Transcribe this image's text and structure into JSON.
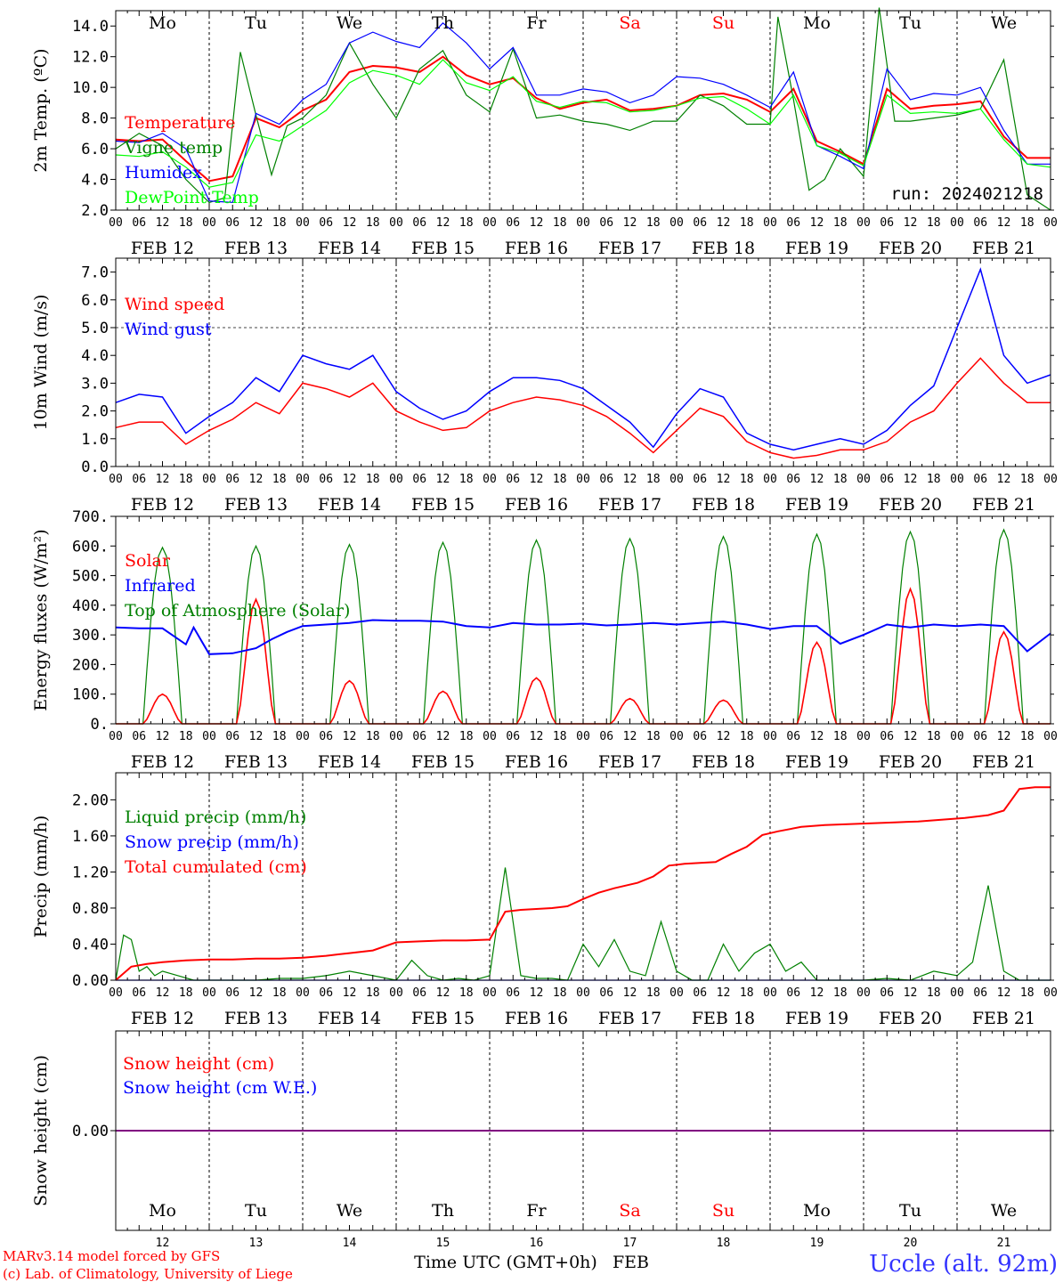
{
  "days": {
    "names": [
      "Mo",
      "Tu",
      "We",
      "Th",
      "Fr",
      "Sa",
      "Su",
      "Mo",
      "Tu",
      "We"
    ],
    "weekend": [
      false,
      false,
      false,
      false,
      false,
      true,
      true,
      false,
      false,
      false
    ],
    "dates": [
      "FEB 12",
      "FEB 13",
      "FEB 14",
      "FEB 15",
      "FEB 16",
      "FEB 17",
      "FEB 18",
      "FEB 19",
      "FEB 20",
      "FEB 21"
    ],
    "numbers": [
      "12",
      "13",
      "14",
      "15",
      "16",
      "17",
      "18",
      "19",
      "20",
      "21"
    ],
    "hour_ticks": [
      "00",
      "06",
      "12",
      "18"
    ],
    "end_tick": "00"
  },
  "colors": {
    "red": "#ff0000",
    "dark_green": "#008000",
    "blue": "#0000ff",
    "light_green": "#00ff00",
    "purple": "#800080",
    "axis": "#000000"
  },
  "footer": {
    "credit1": "MARv3.14 model forced by GFS",
    "credit2": "(c) Lab. of Climatology, University of Liege",
    "xlabel": "Time UTC (GMT+0h)",
    "month": "FEB",
    "station": "Uccle (alt. 92m)"
  },
  "chart_data": [
    {
      "type": "line",
      "ylabel": "2m Temp. (ºC)",
      "ylim": [
        2,
        15
      ],
      "yticks": [
        "2.0",
        "4.0",
        "6.0",
        "8.0",
        "10.0",
        "12.0",
        "14.0"
      ],
      "annotation": "run: 2024021218",
      "x_unit": "hours since FEB 12 00 UTC",
      "series": [
        {
          "name": "Temperature",
          "color": "#ff0000",
          "x": [
            0,
            6,
            12,
            18,
            24,
            30,
            36,
            42,
            48,
            54,
            60,
            66,
            72,
            78,
            84,
            90,
            96,
            102,
            108,
            114,
            120,
            126,
            132,
            138,
            144,
            150,
            156,
            162,
            168,
            174,
            180,
            186,
            192,
            198,
            204,
            210,
            216,
            222,
            228,
            234,
            240
          ],
          "y": [
            6.6,
            6.5,
            6.6,
            5.2,
            3.9,
            4.2,
            8.0,
            7.4,
            8.5,
            9.2,
            11.0,
            11.4,
            11.3,
            11.0,
            12.0,
            10.8,
            10.2,
            10.6,
            9.3,
            8.6,
            9.0,
            9.2,
            8.5,
            8.6,
            8.8,
            9.5,
            9.6,
            9.2,
            8.4,
            9.9,
            6.5,
            5.8,
            5.0,
            9.9,
            8.6,
            8.8,
            8.9,
            9.1,
            6.8,
            5.4,
            5.4
          ]
        },
        {
          "name": "Vigne temp",
          "color": "#008000",
          "x": [
            0,
            6,
            12,
            18,
            24,
            28,
            32,
            36,
            40,
            44,
            48,
            54,
            60,
            66,
            72,
            78,
            84,
            90,
            96,
            102,
            108,
            114,
            120,
            126,
            132,
            138,
            144,
            150,
            156,
            162,
            168,
            170,
            174,
            178,
            182,
            186,
            192,
            196,
            200,
            204,
            210,
            216,
            222,
            228,
            234,
            240
          ],
          "y": [
            6.0,
            7.0,
            6.2,
            4.0,
            2.5,
            2.8,
            12.3,
            8.2,
            4.3,
            7.5,
            8.0,
            9.5,
            12.9,
            10.2,
            8.0,
            11.2,
            12.4,
            9.5,
            8.4,
            12.5,
            8.0,
            8.2,
            7.8,
            7.6,
            7.2,
            7.8,
            7.8,
            9.5,
            8.8,
            7.6,
            7.6,
            14.6,
            9.2,
            3.3,
            4.0,
            6.0,
            4.2,
            15.2,
            7.8,
            7.8,
            8.0,
            8.2,
            8.6,
            11.8,
            3.0,
            2.0
          ]
        },
        {
          "name": "Humidex",
          "color": "#0000ff",
          "x": [
            0,
            6,
            12,
            18,
            24,
            30,
            36,
            42,
            48,
            54,
            60,
            66,
            72,
            78,
            84,
            90,
            96,
            102,
            108,
            114,
            120,
            126,
            132,
            138,
            144,
            150,
            156,
            162,
            168,
            174,
            180,
            186,
            192,
            198,
            204,
            210,
            216,
            222,
            228,
            234,
            240
          ],
          "y": [
            6.5,
            6.4,
            7.0,
            6.0,
            2.6,
            2.5,
            8.3,
            7.6,
            9.2,
            10.2,
            12.9,
            13.6,
            13.0,
            12.6,
            14.2,
            12.9,
            11.2,
            12.6,
            9.5,
            9.5,
            9.9,
            9.7,
            9.0,
            9.5,
            10.7,
            10.6,
            10.2,
            9.5,
            8.7,
            11.0,
            6.2,
            5.5,
            4.7,
            11.2,
            9.2,
            9.6,
            9.5,
            10.0,
            7.2,
            5.0,
            5.0
          ]
        },
        {
          "name": "DewPoint Temp",
          "color": "#00ff00",
          "x": [
            0,
            6,
            12,
            18,
            24,
            30,
            36,
            42,
            48,
            54,
            60,
            66,
            72,
            78,
            84,
            90,
            96,
            102,
            108,
            114,
            120,
            126,
            132,
            138,
            144,
            150,
            156,
            162,
            168,
            174,
            180,
            186,
            192,
            198,
            204,
            210,
            216,
            222,
            228,
            234,
            240
          ],
          "y": [
            5.6,
            5.5,
            5.8,
            4.8,
            3.5,
            3.8,
            6.9,
            6.5,
            7.5,
            8.5,
            10.3,
            11.1,
            10.8,
            10.2,
            11.8,
            10.3,
            9.8,
            10.7,
            9.1,
            8.7,
            9.1,
            9.0,
            8.4,
            8.5,
            8.8,
            9.3,
            9.4,
            8.6,
            7.6,
            9.5,
            6.2,
            5.7,
            4.9,
            9.5,
            8.3,
            8.4,
            8.3,
            8.6,
            6.6,
            5.0,
            4.8
          ]
        }
      ]
    },
    {
      "type": "line",
      "ylabel": "10m Wind (m/s)",
      "ylim": [
        0,
        7.5
      ],
      "yticks": [
        "0.0",
        "1.0",
        "2.0",
        "3.0",
        "4.0",
        "5.0",
        "6.0",
        "7.0"
      ],
      "reference_line": 5.0,
      "x_unit": "hours since FEB 12 00 UTC",
      "series": [
        {
          "name": "Wind speed",
          "color": "#ff0000",
          "x": [
            0,
            6,
            12,
            18,
            24,
            30,
            36,
            42,
            48,
            54,
            60,
            66,
            72,
            78,
            84,
            90,
            96,
            102,
            108,
            114,
            120,
            126,
            132,
            138,
            144,
            150,
            156,
            162,
            168,
            174,
            180,
            186,
            192,
            198,
            204,
            210,
            216,
            222,
            228,
            234,
            240
          ],
          "y": [
            1.4,
            1.6,
            1.6,
            0.8,
            1.3,
            1.7,
            2.3,
            1.9,
            3.0,
            2.8,
            2.5,
            3.0,
            2.0,
            1.6,
            1.3,
            1.4,
            2.0,
            2.3,
            2.5,
            2.4,
            2.2,
            1.8,
            1.2,
            0.5,
            1.3,
            2.1,
            1.8,
            0.9,
            0.5,
            0.3,
            0.4,
            0.6,
            0.6,
            0.9,
            1.6,
            2.0,
            3.0,
            3.9,
            3.0,
            2.3,
            2.3
          ]
        },
        {
          "name": "Wind gust",
          "color": "#0000ff",
          "x": [
            0,
            6,
            12,
            18,
            24,
            30,
            36,
            42,
            48,
            54,
            60,
            66,
            72,
            78,
            84,
            90,
            96,
            102,
            108,
            114,
            120,
            126,
            132,
            138,
            144,
            150,
            156,
            162,
            168,
            174,
            180,
            186,
            192,
            198,
            204,
            210,
            216,
            222,
            228,
            234,
            240
          ],
          "y": [
            2.3,
            2.6,
            2.5,
            1.2,
            1.8,
            2.3,
            3.2,
            2.7,
            4.0,
            3.7,
            3.5,
            4.0,
            2.7,
            2.1,
            1.7,
            2.0,
            2.7,
            3.2,
            3.2,
            3.1,
            2.8,
            2.2,
            1.6,
            0.7,
            1.9,
            2.8,
            2.5,
            1.2,
            0.8,
            0.6,
            0.8,
            1.0,
            0.8,
            1.3,
            2.2,
            2.9,
            5.0,
            7.1,
            4.0,
            3.0,
            3.3
          ]
        }
      ]
    },
    {
      "type": "line",
      "ylabel": "Energy fluxes (W/m²)",
      "ylim": [
        0,
        700
      ],
      "yticks": [
        "0.",
        "100.",
        "200.",
        "300.",
        "400.",
        "500.",
        "600.",
        "700."
      ],
      "x_unit": "hours since FEB 12 00 UTC",
      "solar_peaks": [
        100,
        420,
        145,
        110,
        155,
        85,
        80,
        275,
        455,
        310
      ],
      "toa_peaks": [
        595,
        600,
        605,
        612,
        620,
        625,
        632,
        640,
        648,
        655
      ],
      "series": [
        {
          "name": "Solar",
          "color": "#ff0000"
        },
        {
          "name": "Infrared",
          "color": "#0000ff",
          "x": [
            0,
            6,
            12,
            18,
            20,
            24,
            30,
            36,
            40,
            44,
            48,
            54,
            60,
            66,
            72,
            78,
            84,
            90,
            96,
            102,
            108,
            114,
            120,
            126,
            132,
            138,
            144,
            150,
            156,
            162,
            168,
            174,
            180,
            186,
            192,
            198,
            204,
            210,
            216,
            222,
            228,
            234,
            240
          ],
          "y": [
            325,
            322,
            322,
            268,
            325,
            235,
            238,
            255,
            285,
            310,
            330,
            335,
            340,
            350,
            348,
            348,
            345,
            330,
            325,
            340,
            335,
            335,
            338,
            332,
            335,
            340,
            335,
            340,
            345,
            335,
            320,
            330,
            330,
            270,
            300,
            335,
            325,
            335,
            330,
            335,
            330,
            245,
            305
          ]
        },
        {
          "name": "Top of Atmosphere (Solar)",
          "color": "#008000"
        }
      ]
    },
    {
      "type": "line",
      "ylabel": "Precip (mm/h)",
      "ylim": [
        0,
        2.3
      ],
      "yticks": [
        "0.00",
        "0.40",
        "0.80",
        "1.20",
        "1.60",
        "2.00"
      ],
      "x_unit": "hours since FEB 12 00 UTC",
      "series": [
        {
          "name": "Liquid precip (mm/h)",
          "color": "#008000",
          "x": [
            0,
            2,
            4,
            6,
            8,
            10,
            12,
            16,
            20,
            24,
            30,
            36,
            42,
            48,
            54,
            60,
            66,
            72,
            76,
            80,
            84,
            88,
            92,
            96,
            100,
            104,
            108,
            112,
            116,
            120,
            124,
            128,
            132,
            136,
            140,
            144,
            148,
            152,
            156,
            160,
            164,
            168,
            172,
            176,
            180,
            186,
            192,
            198,
            204,
            210,
            216,
            220,
            224,
            228,
            232,
            236,
            240
          ],
          "y": [
            0.0,
            0.5,
            0.45,
            0.1,
            0.15,
            0.05,
            0.1,
            0.05,
            0.0,
            0.0,
            0.0,
            0.0,
            0.02,
            0.02,
            0.05,
            0.1,
            0.05,
            0.0,
            0.22,
            0.05,
            0.0,
            0.02,
            0.0,
            0.05,
            1.25,
            0.05,
            0.02,
            0.02,
            0.0,
            0.4,
            0.15,
            0.45,
            0.1,
            0.05,
            0.65,
            0.1,
            0.0,
            0.0,
            0.4,
            0.1,
            0.3,
            0.4,
            0.1,
            0.2,
            0.0,
            0.0,
            0.0,
            0.02,
            0.0,
            0.1,
            0.05,
            0.2,
            1.05,
            0.1,
            0.0,
            0.0,
            0.0
          ]
        },
        {
          "name": "Snow precip (mm/h)",
          "color": "#0000ff",
          "x": [
            0,
            240
          ],
          "y": [
            0,
            0
          ]
        },
        {
          "name": "Total cumulated (cm)",
          "color": "#ff0000",
          "x": [
            0,
            4,
            8,
            12,
            18,
            24,
            30,
            36,
            42,
            48,
            54,
            60,
            66,
            72,
            78,
            84,
            90,
            96,
            100,
            104,
            108,
            112,
            116,
            120,
            124,
            128,
            134,
            138,
            142,
            146,
            150,
            154,
            158,
            162,
            166,
            170,
            176,
            182,
            188,
            194,
            200,
            206,
            212,
            218,
            224,
            228,
            232,
            236,
            240
          ],
          "y": [
            0.0,
            0.15,
            0.18,
            0.2,
            0.22,
            0.23,
            0.23,
            0.24,
            0.24,
            0.25,
            0.27,
            0.3,
            0.33,
            0.42,
            0.43,
            0.44,
            0.44,
            0.45,
            0.76,
            0.78,
            0.79,
            0.8,
            0.82,
            0.9,
            0.97,
            1.02,
            1.08,
            1.15,
            1.27,
            1.29,
            1.3,
            1.31,
            1.4,
            1.48,
            1.61,
            1.65,
            1.7,
            1.72,
            1.73,
            1.74,
            1.75,
            1.76,
            1.78,
            1.8,
            1.83,
            1.88,
            2.12,
            2.14,
            2.14
          ]
        }
      ]
    },
    {
      "type": "line",
      "ylabel": "Snow height (cm)",
      "ylim": [
        -1,
        1
      ],
      "yticks": [
        "0.00"
      ],
      "x_unit": "hours since FEB 12 00 UTC",
      "series": [
        {
          "name": "Snow height (cm)",
          "color": "#ff0000",
          "x": [
            0,
            240
          ],
          "y": [
            0,
            0
          ]
        },
        {
          "name": "Snow height (cm W.E.)",
          "color": "#0000ff",
          "x": [
            0,
            240
          ],
          "y": [
            0,
            0
          ]
        }
      ]
    }
  ]
}
